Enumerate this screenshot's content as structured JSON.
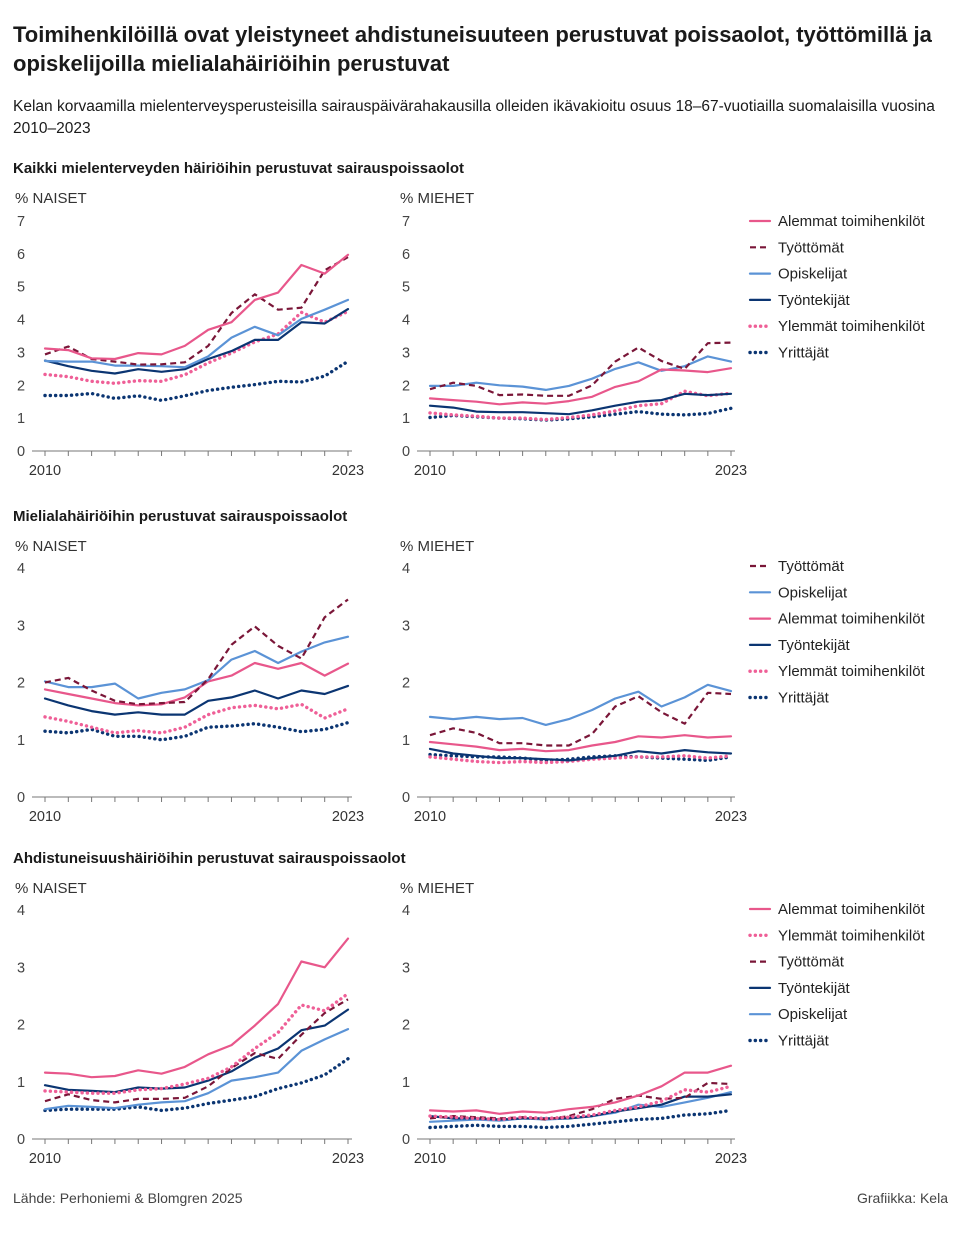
{
  "title": "Toimihenkilöillä ovat yleistyneet ahdistuneisuuteen perustuvat poissaolot, työttömillä ja opiskelijoilla mielialahäiriöihin perustuvat",
  "subtitle": "Kelan korvaamilla mielenterveysperusteisilla sairauspäivärahakausilla olleiden ikävakioitu osuus 18–67-vuotiailla suomalaisilla vuosina 2010–2023",
  "source": "Lähde: Perhoniemi & Blomgren 2025",
  "credit": "Grafiikka: Kela",
  "colors": {
    "Alemmat toimihenkilöt": "#e8578b",
    "Työttömät": "#7a1638",
    "Opiskelijat": "#5b93d6",
    "Työntekijät": "#0b3572",
    "Ylemmät toimihenkilöt": "#ef5f97",
    "Yrittäjät": "#0b3572"
  },
  "dash": {
    "Alemmat toimihenkilöt": "solid",
    "Työttömät": "dashed",
    "Opiskelijat": "solid",
    "Työntekijät": "solid",
    "Ylemmät toimihenkilöt": "dotted",
    "Yrittäjät": "dotted"
  },
  "chart_data": [
    {
      "type": "line",
      "section": "Kaikki mielenterveyden häiriöihin perustuvat sairauspoissaolot",
      "panels": [
        {
          "title": "NAISET",
          "ylabel": "%",
          "ylim": [
            0,
            7
          ],
          "yticks": [
            "0",
            "1",
            "2",
            "3",
            "4",
            "5",
            "6",
            "7"
          ],
          "x_range": [
            2010,
            2023
          ],
          "xtick_labels": [
            "2010",
            "2023"
          ],
          "series": [
            {
              "name": "Alemmat toimihenkilöt",
              "values": [
                3.12,
                3.07,
                2.82,
                2.8,
                2.98,
                2.94,
                3.2,
                3.69,
                3.92,
                4.6,
                4.82,
                5.66,
                5.4,
                5.97
              ]
            },
            {
              "name": "Työttömät",
              "values": [
                2.94,
                3.18,
                2.8,
                2.72,
                2.63,
                2.64,
                2.7,
                3.2,
                4.2,
                4.77,
                4.3,
                4.36,
                5.5,
                5.9
              ]
            },
            {
              "name": "Opiskelijat",
              "values": [
                2.74,
                2.72,
                2.72,
                2.6,
                2.6,
                2.58,
                2.55,
                2.88,
                3.45,
                3.78,
                3.52,
                4.02,
                4.3,
                4.6
              ]
            },
            {
              "name": "Työntekijät",
              "values": [
                2.75,
                2.58,
                2.44,
                2.36,
                2.49,
                2.41,
                2.49,
                2.8,
                3.04,
                3.38,
                3.38,
                3.92,
                3.88,
                4.32
              ]
            },
            {
              "name": "Ylemmät toimihenkilöt",
              "values": [
                2.33,
                2.26,
                2.12,
                2.06,
                2.14,
                2.12,
                2.32,
                2.68,
                2.98,
                3.32,
                3.56,
                4.22,
                3.92,
                4.25
              ]
            },
            {
              "name": "Yrittäjät",
              "values": [
                1.69,
                1.69,
                1.75,
                1.6,
                1.68,
                1.54,
                1.68,
                1.84,
                1.94,
                2.02,
                2.12,
                2.1,
                2.28,
                2.73
              ]
            }
          ]
        },
        {
          "title": "MIEHET",
          "ylabel": "%",
          "ylim": [
            0,
            7
          ],
          "yticks": [
            "0",
            "1",
            "2",
            "3",
            "4",
            "5",
            "6",
            "7"
          ],
          "x_range": [
            2010,
            2023
          ],
          "xtick_labels": [
            "2010",
            "2023"
          ],
          "series": [
            {
              "name": "Alemmat toimihenkilöt",
              "values": [
                1.6,
                1.55,
                1.5,
                1.42,
                1.48,
                1.44,
                1.52,
                1.65,
                1.95,
                2.12,
                2.48,
                2.45,
                2.4,
                2.52
              ]
            },
            {
              "name": "Työttömät",
              "values": [
                1.88,
                2.08,
                1.98,
                1.7,
                1.72,
                1.68,
                1.68,
                2.0,
                2.72,
                3.15,
                2.74,
                2.5,
                3.28,
                3.3
              ]
            },
            {
              "name": "Opiskelijat",
              "values": [
                1.98,
                1.98,
                2.08,
                2.0,
                1.96,
                1.86,
                1.98,
                2.2,
                2.5,
                2.7,
                2.44,
                2.58,
                2.88,
                2.72
              ]
            },
            {
              "name": "Työntekijät",
              "values": [
                1.38,
                1.32,
                1.2,
                1.18,
                1.18,
                1.15,
                1.12,
                1.24,
                1.38,
                1.5,
                1.55,
                1.74,
                1.7,
                1.74
              ]
            },
            {
              "name": "Ylemmät toimihenkilöt",
              "values": [
                1.16,
                1.1,
                1.06,
                1.0,
                1.0,
                0.96,
                1.02,
                1.1,
                1.22,
                1.38,
                1.44,
                1.82,
                1.68,
                1.76
              ]
            },
            {
              "name": "Yrittäjät",
              "values": [
                1.02,
                1.08,
                1.04,
                1.0,
                0.98,
                0.94,
                0.98,
                1.04,
                1.12,
                1.2,
                1.12,
                1.1,
                1.14,
                1.3
              ]
            }
          ]
        }
      ],
      "legend": [
        "Alemmat toimihenkilöt",
        "Työttömät",
        "Opiskelijat",
        "Työntekijät",
        "Ylemmät toimihenkilöt",
        "Yrittäjät"
      ]
    },
    {
      "type": "line",
      "section": "Mielialahäiriöihin perustuvat sairauspoissaolot",
      "panels": [
        {
          "title": "NAISET",
          "ylabel": "%",
          "ylim": [
            0,
            4
          ],
          "yticks": [
            "0",
            "1",
            "2",
            "3",
            "4"
          ],
          "x_range": [
            2010,
            2023
          ],
          "xtick_labels": [
            "2010",
            "2023"
          ],
          "series": [
            {
              "name": "Työttömät",
              "values": [
                2.0,
                2.08,
                1.86,
                1.68,
                1.62,
                1.64,
                1.66,
                2.06,
                2.66,
                2.98,
                2.64,
                2.42,
                3.14,
                3.45
              ]
            },
            {
              "name": "Opiskelijat",
              "values": [
                2.02,
                1.92,
                1.92,
                1.98,
                1.72,
                1.82,
                1.88,
                2.04,
                2.4,
                2.55,
                2.34,
                2.54,
                2.7,
                2.8
              ]
            },
            {
              "name": "Alemmat toimihenkilöt",
              "values": [
                1.88,
                1.8,
                1.72,
                1.64,
                1.6,
                1.62,
                1.74,
                2.02,
                2.12,
                2.34,
                2.24,
                2.34,
                2.12,
                2.33
              ]
            },
            {
              "name": "Työntekijät",
              "values": [
                1.72,
                1.6,
                1.5,
                1.44,
                1.48,
                1.44,
                1.44,
                1.68,
                1.74,
                1.86,
                1.72,
                1.86,
                1.8,
                1.94
              ]
            },
            {
              "name": "Ylemmät toimihenkilöt",
              "values": [
                1.4,
                1.32,
                1.22,
                1.12,
                1.16,
                1.12,
                1.22,
                1.44,
                1.56,
                1.6,
                1.54,
                1.62,
                1.38,
                1.54
              ]
            },
            {
              "name": "Yrittäjät",
              "values": [
                1.15,
                1.12,
                1.18,
                1.06,
                1.06,
                1.0,
                1.06,
                1.22,
                1.24,
                1.28,
                1.22,
                1.14,
                1.18,
                1.3
              ]
            }
          ]
        },
        {
          "title": "MIEHET",
          "ylabel": "%",
          "ylim": [
            0,
            4
          ],
          "yticks": [
            "0",
            "1",
            "2",
            "3",
            "4"
          ],
          "x_range": [
            2010,
            2023
          ],
          "xtick_labels": [
            "2010",
            "2023"
          ],
          "series": [
            {
              "name": "Työttömät",
              "values": [
                1.08,
                1.2,
                1.12,
                0.94,
                0.94,
                0.9,
                0.9,
                1.1,
                1.58,
                1.76,
                1.48,
                1.28,
                1.82,
                1.8
              ]
            },
            {
              "name": "Opiskelijat",
              "values": [
                1.4,
                1.36,
                1.4,
                1.36,
                1.38,
                1.26,
                1.36,
                1.52,
                1.72,
                1.84,
                1.58,
                1.74,
                1.96,
                1.85
              ]
            },
            {
              "name": "Alemmat toimihenkilöt",
              "values": [
                0.96,
                0.92,
                0.88,
                0.82,
                0.84,
                0.8,
                0.82,
                0.9,
                0.96,
                1.06,
                1.04,
                1.08,
                1.04,
                1.06
              ]
            },
            {
              "name": "Työntekijät",
              "values": [
                0.84,
                0.76,
                0.72,
                0.68,
                0.68,
                0.66,
                0.64,
                0.68,
                0.72,
                0.8,
                0.76,
                0.82,
                0.78,
                0.76
              ]
            },
            {
              "name": "Ylemmät toimihenkilöt",
              "values": [
                0.7,
                0.66,
                0.62,
                0.6,
                0.62,
                0.6,
                0.62,
                0.66,
                0.68,
                0.7,
                0.7,
                0.72,
                0.68,
                0.72
              ]
            },
            {
              "name": "Yrittäjät",
              "values": [
                0.74,
                0.72,
                0.7,
                0.7,
                0.68,
                0.64,
                0.66,
                0.7,
                0.72,
                0.7,
                0.68,
                0.66,
                0.64,
                0.7
              ]
            }
          ]
        }
      ],
      "legend": [
        "Työttömät",
        "Opiskelijat",
        "Alemmat toimihenkilöt",
        "Työntekijät",
        "Ylemmät toimihenkilöt",
        "Yrittäjät"
      ]
    },
    {
      "type": "line",
      "section": "Ahdistuneisuushäiriöihin perustuvat sairauspoissaolot",
      "panels": [
        {
          "title": "NAISET",
          "ylabel": "%",
          "ylim": [
            0,
            4
          ],
          "yticks": [
            "0",
            "1",
            "2",
            "3",
            "4"
          ],
          "x_range": [
            2010,
            2023
          ],
          "xtick_labels": [
            "2010",
            "2023"
          ],
          "series": [
            {
              "name": "Alemmat toimihenkilöt",
              "values": [
                1.16,
                1.14,
                1.08,
                1.1,
                1.2,
                1.14,
                1.26,
                1.48,
                1.64,
                1.98,
                2.36,
                3.1,
                3.0,
                3.5
              ]
            },
            {
              "name": "Ylemmät toimihenkilöt",
              "values": [
                0.84,
                0.82,
                0.8,
                0.8,
                0.86,
                0.88,
                0.96,
                1.06,
                1.26,
                1.58,
                1.86,
                2.34,
                2.24,
                2.54
              ]
            },
            {
              "name": "Työttömät",
              "values": [
                0.66,
                0.78,
                0.68,
                0.64,
                0.7,
                0.7,
                0.72,
                0.92,
                1.24,
                1.5,
                1.4,
                1.82,
                2.2,
                2.44
              ]
            },
            {
              "name": "Työntekijät",
              "values": [
                0.94,
                0.86,
                0.84,
                0.82,
                0.9,
                0.88,
                0.9,
                1.02,
                1.18,
                1.42,
                1.58,
                1.9,
                1.98,
                2.26
              ]
            },
            {
              "name": "Opiskelijat",
              "values": [
                0.52,
                0.58,
                0.56,
                0.54,
                0.6,
                0.64,
                0.66,
                0.8,
                1.02,
                1.08,
                1.16,
                1.54,
                1.74,
                1.92
              ]
            },
            {
              "name": "Yrittäjät",
              "values": [
                0.5,
                0.52,
                0.52,
                0.52,
                0.56,
                0.5,
                0.54,
                0.62,
                0.68,
                0.74,
                0.88,
                0.98,
                1.12,
                1.4
              ]
            }
          ]
        },
        {
          "title": "MIEHET",
          "ylabel": "%",
          "ylim": [
            0,
            4
          ],
          "yticks": [
            "0",
            "1",
            "2",
            "3",
            "4"
          ],
          "x_range": [
            2010,
            2023
          ],
          "xtick_labels": [
            "2010",
            "2023"
          ],
          "series": [
            {
              "name": "Alemmat toimihenkilöt",
              "values": [
                0.5,
                0.48,
                0.5,
                0.44,
                0.48,
                0.46,
                0.52,
                0.56,
                0.64,
                0.76,
                0.92,
                1.16,
                1.16,
                1.28
              ]
            },
            {
              "name": "Ylemmät toimihenkilöt",
              "values": [
                0.4,
                0.38,
                0.36,
                0.34,
                0.38,
                0.36,
                0.38,
                0.42,
                0.5,
                0.56,
                0.66,
                0.86,
                0.82,
                0.92
              ]
            },
            {
              "name": "Työttömät",
              "values": [
                0.36,
                0.4,
                0.38,
                0.36,
                0.38,
                0.34,
                0.4,
                0.52,
                0.7,
                0.76,
                0.7,
                0.72,
                0.98,
                0.96
              ]
            },
            {
              "name": "Työntekijät",
              "values": [
                0.4,
                0.36,
                0.36,
                0.34,
                0.36,
                0.36,
                0.36,
                0.4,
                0.48,
                0.54,
                0.6,
                0.74,
                0.74,
                0.78
              ]
            },
            {
              "name": "Opiskelijat",
              "values": [
                0.3,
                0.32,
                0.34,
                0.32,
                0.36,
                0.34,
                0.36,
                0.4,
                0.46,
                0.6,
                0.56,
                0.64,
                0.72,
                0.82
              ]
            },
            {
              "name": "Yrittäjät",
              "values": [
                0.2,
                0.22,
                0.24,
                0.22,
                0.22,
                0.2,
                0.22,
                0.26,
                0.3,
                0.34,
                0.36,
                0.42,
                0.44,
                0.5
              ]
            }
          ]
        }
      ],
      "legend": [
        "Alemmat toimihenkilöt",
        "Ylemmät toimihenkilöt",
        "Työttömät",
        "Työntekijät",
        "Opiskelijat",
        "Yrittäjät"
      ]
    }
  ]
}
